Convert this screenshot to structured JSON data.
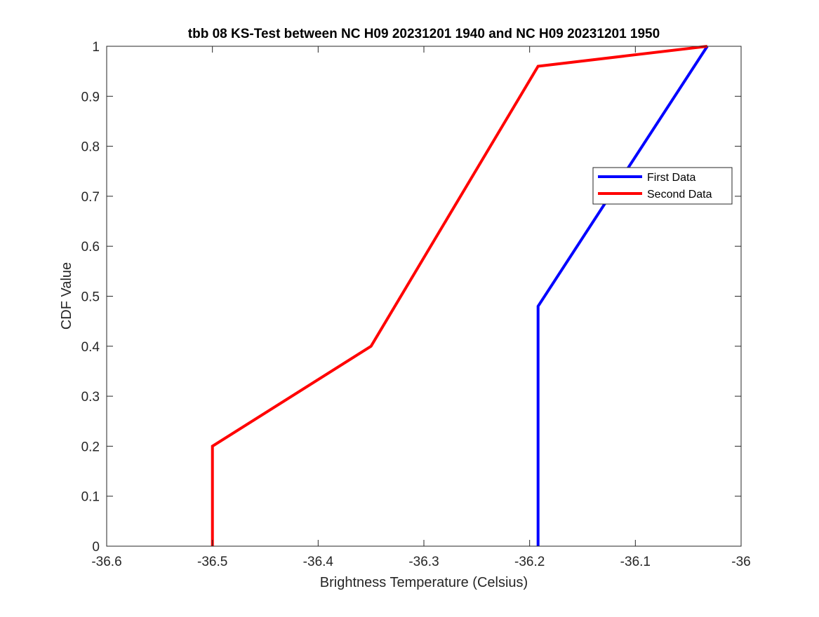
{
  "figure": {
    "background": "#ffffff"
  },
  "chart_data": {
    "type": "line",
    "title": "tbb 08 KS-Test between NC H09 20231201 1940 and NC H09 20231201 1950",
    "xlabel": "Brightness Temperature (Celsius)",
    "ylabel": "CDF Value",
    "xlim": [
      -36.6,
      -36
    ],
    "ylim": [
      0,
      1
    ],
    "xticks": [
      -36.6,
      -36.5,
      -36.4,
      -36.3,
      -36.2,
      -36.1,
      -36
    ],
    "xtick_labels": [
      "-36.6",
      "-36.5",
      "-36.4",
      "-36.3",
      "-36.2",
      "-36.1",
      "-36"
    ],
    "yticks": [
      0,
      0.1,
      0.2,
      0.3,
      0.4,
      0.5,
      0.6,
      0.7,
      0.8,
      0.9,
      1
    ],
    "ytick_labels": [
      "0",
      "0.1",
      "0.2",
      "0.3",
      "0.4",
      "0.5",
      "0.6",
      "0.7",
      "0.8",
      "0.9",
      "1"
    ],
    "grid": false,
    "legend_position": "upper-right",
    "series": [
      {
        "name": "First Data",
        "color": "#0000ff",
        "x": [
          -36.192,
          -36.192,
          -36.032
        ],
        "y": [
          0,
          0.48,
          1
        ]
      },
      {
        "name": "Second Data",
        "color": "#ff0000",
        "x": [
          -36.5,
          -36.5,
          -36.35,
          -36.192,
          -36.032
        ],
        "y": [
          0,
          0.2,
          0.4,
          0.96,
          1
        ]
      }
    ]
  }
}
